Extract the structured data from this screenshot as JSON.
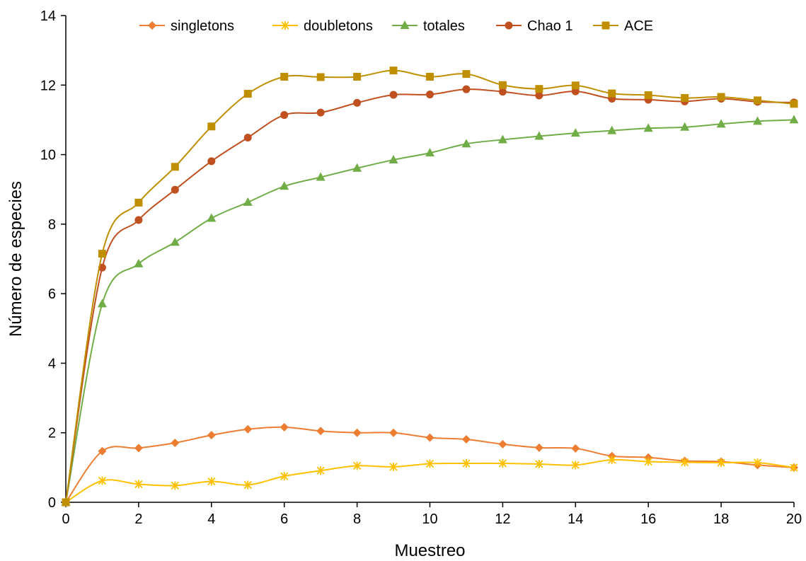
{
  "chart_data": {
    "type": "line",
    "title": "",
    "xlabel": "Muestreo",
    "ylabel": "Número de especies",
    "xlim": [
      0,
      20
    ],
    "ylim": [
      0,
      14
    ],
    "xticks": [
      0,
      2,
      4,
      6,
      8,
      10,
      12,
      14,
      16,
      18,
      20
    ],
    "yticks": [
      0,
      2,
      4,
      6,
      8,
      10,
      12,
      14
    ],
    "grid": false,
    "legend_position": "top",
    "x": [
      0,
      1,
      2,
      3,
      4,
      5,
      6,
      7,
      8,
      9,
      10,
      11,
      12,
      13,
      14,
      15,
      16,
      17,
      18,
      19,
      20
    ],
    "series": [
      {
        "name": "singletons",
        "color": "#ED7D31",
        "marker": "diamond",
        "values": [
          0,
          1.47,
          1.56,
          1.71,
          1.93,
          2.1,
          2.16,
          2.05,
          2.0,
          2.0,
          1.86,
          1.81,
          1.67,
          1.57,
          1.55,
          1.33,
          1.29,
          1.19,
          1.17,
          1.07,
          1.0
        ]
      },
      {
        "name": "doubletons",
        "color": "#FFC000",
        "marker": "star",
        "values": [
          0,
          0.62,
          0.52,
          0.48,
          0.6,
          0.5,
          0.75,
          0.91,
          1.05,
          1.02,
          1.11,
          1.12,
          1.12,
          1.1,
          1.07,
          1.22,
          1.17,
          1.15,
          1.14,
          1.14,
          1.0
        ]
      },
      {
        "name": "totales",
        "color": "#70AD47",
        "marker": "triangle",
        "values": [
          0,
          5.71,
          6.86,
          7.48,
          8.17,
          8.63,
          9.09,
          9.35,
          9.61,
          9.85,
          10.05,
          10.31,
          10.43,
          10.53,
          10.62,
          10.69,
          10.76,
          10.79,
          10.88,
          10.96,
          11.0
        ]
      },
      {
        "name": "Chao 1",
        "color": "#C0501F",
        "marker": "circle",
        "values": [
          0,
          6.75,
          8.12,
          8.99,
          9.81,
          10.49,
          11.14,
          11.21,
          11.49,
          11.72,
          11.73,
          11.88,
          11.81,
          11.7,
          11.82,
          11.61,
          11.58,
          11.53,
          11.61,
          11.52,
          11.5
        ]
      },
      {
        "name": "ACE",
        "color": "#BF8F00",
        "marker": "square",
        "values": [
          0,
          7.15,
          8.62,
          9.65,
          10.81,
          11.75,
          12.24,
          12.23,
          12.24,
          12.42,
          12.24,
          12.32,
          12.0,
          11.89,
          11.99,
          11.76,
          11.71,
          11.63,
          11.66,
          11.56,
          11.46
        ]
      }
    ]
  }
}
